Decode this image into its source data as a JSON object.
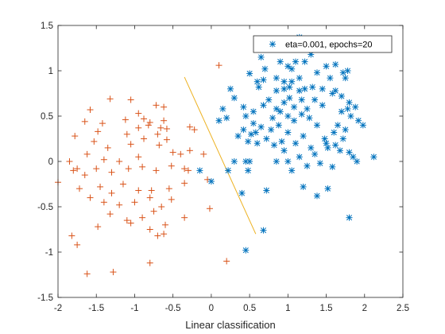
{
  "chart_data": {
    "type": "scatter",
    "title": "",
    "xlabel": "Linear classification",
    "ylabel": "",
    "xlim": [
      -2,
      2.5
    ],
    "ylim": [
      -1.5,
      1.5
    ],
    "xticks": [
      -2,
      -1.5,
      -1,
      -0.5,
      0,
      0.5,
      1,
      1.5,
      2,
      2.5
    ],
    "yticks": [
      -1.5,
      -1,
      -0.5,
      0,
      0.5,
      1,
      1.5
    ],
    "xtick_labels": [
      "-2",
      "-1.5",
      "-1",
      "-0.5",
      "0",
      "0.5",
      "1",
      "1.5",
      "2",
      "2.5"
    ],
    "ytick_labels": [
      "-1.5",
      "-1",
      "-0.5",
      "0",
      "0.5",
      "1",
      "1.5"
    ],
    "grid": false,
    "box": true,
    "legend": {
      "location": "top-right",
      "entries": [
        "eta=0.001, epochs=20"
      ]
    },
    "colors": {
      "class_plus": "#D95319",
      "class_star": "#0072BD",
      "boundary": "#EDB120",
      "axes": "#262626"
    },
    "series": [
      {
        "marker": "plus",
        "color": "#D95319",
        "points": [
          [
            -1.58,
            0.57
          ],
          [
            -1.32,
            0.69
          ],
          [
            -1.05,
            0.68
          ],
          [
            -0.95,
            0.53
          ],
          [
            -0.72,
            0.62
          ],
          [
            -0.62,
            0.6
          ],
          [
            -1.65,
            0.44
          ],
          [
            -1.42,
            0.42
          ],
          [
            -1.12,
            0.46
          ],
          [
            -0.88,
            0.47
          ],
          [
            -0.8,
            0.43
          ],
          [
            -0.62,
            0.45
          ],
          [
            -0.58,
            0.36
          ],
          [
            -0.22,
            0.35
          ],
          [
            -1.78,
            0.28
          ],
          [
            -1.48,
            0.33
          ],
          [
            -1.1,
            0.3
          ],
          [
            -0.95,
            0.37
          ],
          [
            -0.82,
            0.4
          ],
          [
            -1.53,
            0.22
          ],
          [
            -1.35,
            0.15
          ],
          [
            -1.05,
            0.19
          ],
          [
            -0.88,
            0.25
          ],
          [
            -0.7,
            0.3
          ],
          [
            -0.5,
            0.1
          ],
          [
            -1.85,
            0.0
          ],
          [
            -1.62,
            0.08
          ],
          [
            -1.4,
            0.02
          ],
          [
            -1.2,
            0.0
          ],
          [
            -0.95,
            0.05
          ],
          [
            -0.68,
            0.18
          ],
          [
            -0.58,
            0.24
          ],
          [
            -0.4,
            0.08
          ],
          [
            -0.28,
            0.12
          ],
          [
            -1.8,
            -0.1
          ],
          [
            -1.65,
            -0.15
          ],
          [
            -1.5,
            -0.08
          ],
          [
            -1.3,
            -0.12
          ],
          [
            -1.08,
            -0.08
          ],
          [
            -0.9,
            -0.06
          ],
          [
            -0.72,
            -0.1
          ],
          [
            -0.52,
            -0.05
          ],
          [
            -0.35,
            -0.08
          ],
          [
            -0.1,
            0.08
          ],
          [
            -0.05,
            -0.2
          ],
          [
            -1.72,
            -0.3
          ],
          [
            -1.45,
            -0.28
          ],
          [
            -1.3,
            -0.35
          ],
          [
            -1.15,
            -0.25
          ],
          [
            -0.95,
            -0.32
          ],
          [
            -0.78,
            -0.32
          ],
          [
            -0.55,
            -0.3
          ],
          [
            -0.35,
            -0.24
          ],
          [
            -1.58,
            -0.4
          ],
          [
            -1.4,
            -0.45
          ],
          [
            -1.2,
            -0.48
          ],
          [
            -1.0,
            -0.45
          ],
          [
            -0.8,
            -0.4
          ],
          [
            -0.65,
            -0.5
          ],
          [
            -0.52,
            -0.42
          ],
          [
            -1.32,
            -0.58
          ],
          [
            -1.1,
            -0.65
          ],
          [
            -0.9,
            -0.62
          ],
          [
            -0.75,
            -0.55
          ],
          [
            -0.35,
            -0.62
          ],
          [
            -0.02,
            -0.52
          ],
          [
            -1.48,
            -0.72
          ],
          [
            -1.05,
            -0.68
          ],
          [
            -0.8,
            -0.75
          ],
          [
            -0.62,
            -0.8
          ],
          [
            -1.82,
            -0.82
          ],
          [
            -1.75,
            -0.92
          ],
          [
            -0.6,
            -0.7
          ],
          [
            -0.7,
            -0.82
          ],
          [
            -0.8,
            -1.12
          ],
          [
            -1.62,
            -1.24
          ],
          [
            -1.28,
            -1.22
          ],
          [
            0.2,
            -1.1
          ],
          [
            0.1,
            1.06
          ],
          [
            -0.28,
            0.38
          ],
          [
            -1.75,
            -0.08
          ],
          [
            -2.0,
            -0.23
          ],
          [
            -0.3,
            -0.1
          ],
          [
            -0.66,
            0.37
          ]
        ]
      },
      {
        "marker": "star",
        "color": "#0072BD",
        "points": [
          [
            1.15,
            1.37
          ],
          [
            0.65,
            1.15
          ],
          [
            0.7,
            1.02
          ],
          [
            0.9,
            1.1
          ],
          [
            1.05,
            1.02
          ],
          [
            1.1,
            1.1
          ],
          [
            1.22,
            1.1
          ],
          [
            1.3,
            1.18
          ],
          [
            1.5,
            1.05
          ],
          [
            1.62,
            1.07
          ],
          [
            1.72,
            0.98
          ],
          [
            1.78,
            1.0
          ],
          [
            0.5,
            0.97
          ],
          [
            0.68,
            0.9
          ],
          [
            0.85,
            0.92
          ],
          [
            0.95,
            0.88
          ],
          [
            1.02,
            0.82
          ],
          [
            1.15,
            0.92
          ],
          [
            1.38,
            0.98
          ],
          [
            1.55,
            0.92
          ],
          [
            1.62,
            0.78
          ],
          [
            1.7,
            0.72
          ],
          [
            0.6,
            0.88
          ],
          [
            0.62,
            0.82
          ],
          [
            0.85,
            0.78
          ],
          [
            0.95,
            0.8
          ],
          [
            1.05,
            0.88
          ],
          [
            1.15,
            0.78
          ],
          [
            1.22,
            0.8
          ],
          [
            1.32,
            0.82
          ],
          [
            1.45,
            0.8
          ],
          [
            1.58,
            0.75
          ],
          [
            1.8,
            0.65
          ],
          [
            1.88,
            0.6
          ],
          [
            0.25,
            0.8
          ],
          [
            0.15,
            0.58
          ],
          [
            0.3,
            0.7
          ],
          [
            0.42,
            0.6
          ],
          [
            0.55,
            0.55
          ],
          [
            0.68,
            0.62
          ],
          [
            0.75,
            0.68
          ],
          [
            0.85,
            0.58
          ],
          [
            0.95,
            0.65
          ],
          [
            1.02,
            0.7
          ],
          [
            1.08,
            0.6
          ],
          [
            1.18,
            0.68
          ],
          [
            1.25,
            0.58
          ],
          [
            1.35,
            0.68
          ],
          [
            1.45,
            0.62
          ],
          [
            1.7,
            0.55
          ],
          [
            1.78,
            0.58
          ],
          [
            1.82,
            0.5
          ],
          [
            0.1,
            0.45
          ],
          [
            0.2,
            0.48
          ],
          [
            0.45,
            0.5
          ],
          [
            0.55,
            0.42
          ],
          [
            0.65,
            0.38
          ],
          [
            0.8,
            0.48
          ],
          [
            0.9,
            0.55
          ],
          [
            1.0,
            0.5
          ],
          [
            1.08,
            0.45
          ],
          [
            1.18,
            0.52
          ],
          [
            1.28,
            0.48
          ],
          [
            1.38,
            0.4
          ],
          [
            1.65,
            0.4
          ],
          [
            1.75,
            0.35
          ],
          [
            1.92,
            0.45
          ],
          [
            0.42,
            0.35
          ],
          [
            0.52,
            0.3
          ],
          [
            0.58,
            0.32
          ],
          [
            0.78,
            0.35
          ],
          [
            0.88,
            0.4
          ],
          [
            1.0,
            0.32
          ],
          [
            1.2,
            0.28
          ],
          [
            1.48,
            0.25
          ],
          [
            1.6,
            0.32
          ],
          [
            1.98,
            0.4
          ],
          [
            0.35,
            0.28
          ],
          [
            0.48,
            0.22
          ],
          [
            0.6,
            0.2
          ],
          [
            0.72,
            0.25
          ],
          [
            0.82,
            0.18
          ],
          [
            0.92,
            0.22
          ],
          [
            1.1,
            0.2
          ],
          [
            1.3,
            0.15
          ],
          [
            1.5,
            0.2
          ],
          [
            1.62,
            0.18
          ],
          [
            1.72,
            0.25
          ],
          [
            1.8,
            0.1
          ],
          [
            0.95,
            0.12
          ],
          [
            1.15,
            0.05
          ],
          [
            1.35,
            0.08
          ],
          [
            1.52,
            0.15
          ],
          [
            1.68,
            0.12
          ],
          [
            1.85,
            0.05
          ],
          [
            2.12,
            0.05
          ],
          [
            1.9,
            0.0
          ],
          [
            0.3,
            0.0
          ],
          [
            0.45,
            0.0
          ],
          [
            0.5,
            0.0
          ],
          [
            0.85,
            0.0
          ],
          [
            1.0,
            0.0
          ],
          [
            1.05,
            -0.1
          ],
          [
            1.25,
            -0.05
          ],
          [
            1.42,
            -0.02
          ],
          [
            1.58,
            -0.06
          ],
          [
            -0.15,
            -0.1
          ],
          [
            0.0,
            -0.22
          ],
          [
            0.22,
            -0.1
          ],
          [
            0.48,
            -0.1
          ],
          [
            0.4,
            -0.35
          ],
          [
            0.72,
            -0.32
          ],
          [
            1.2,
            -0.28
          ],
          [
            1.38,
            -0.38
          ],
          [
            1.52,
            -0.3
          ],
          [
            1.8,
            -0.62
          ],
          [
            0.68,
            -0.76
          ],
          [
            0.45,
            -0.98
          ],
          [
            1.75,
            0.92
          ],
          [
            1.0,
            1.05
          ]
        ]
      }
    ],
    "boundary_line": {
      "x": [
        -0.35,
        0.58
      ],
      "y": [
        0.93,
        -0.8
      ]
    }
  }
}
